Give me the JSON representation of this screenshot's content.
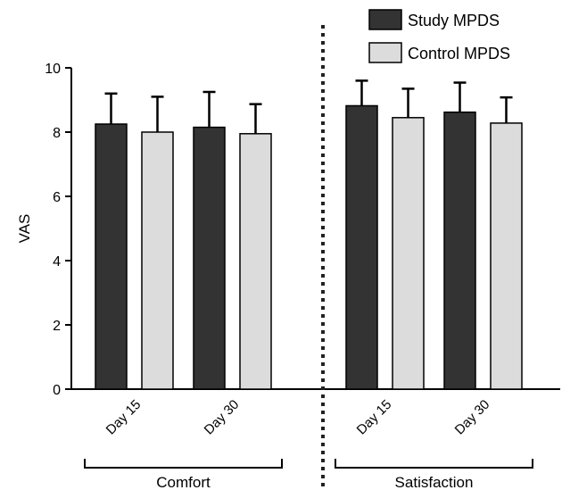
{
  "chart_data": {
    "type": "bar",
    "ylabel": "VAS",
    "ylim": [
      0,
      10
    ],
    "yticks": [
      "0",
      "2",
      "4",
      "6",
      "8",
      "10"
    ],
    "grid": false,
    "legend_position": "top-right",
    "groups": [
      {
        "label": "Comfort",
        "categories": [
          "Day 15",
          "Day 30"
        ],
        "series": [
          {
            "name": "Study MPDS",
            "values": [
              8.25,
              8.15
            ],
            "errors": [
              0.95,
              1.1
            ]
          },
          {
            "name": "Control MPDS",
            "values": [
              8.0,
              7.95
            ],
            "errors": [
              1.1,
              0.92
            ]
          }
        ]
      },
      {
        "label": "Satisfaction",
        "categories": [
          "Day 15",
          "Day 30"
        ],
        "series": [
          {
            "name": "Study MPDS",
            "values": [
              8.82,
              8.62
            ],
            "errors": [
              0.78,
              0.92
            ]
          },
          {
            "name": "Control MPDS",
            "values": [
              8.45,
              8.28
            ],
            "errors": [
              0.9,
              0.8
            ]
          }
        ]
      }
    ],
    "legend": [
      {
        "name": "Study MPDS",
        "color": "#333333"
      },
      {
        "name": "Control MPDS",
        "color": "#dcdcdc"
      }
    ]
  }
}
